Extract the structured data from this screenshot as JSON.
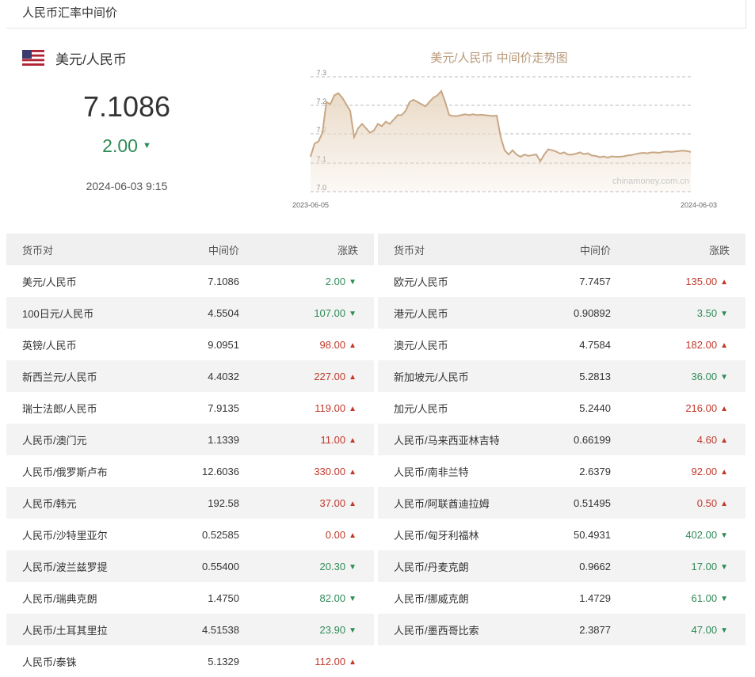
{
  "header": {
    "title": "人民币汇率中间价"
  },
  "summary": {
    "pair": "美元/人民币",
    "rate": "7.1086",
    "change": "2.00",
    "direction": "down",
    "timestamp": "2024-06-03 9:15"
  },
  "chart_data": {
    "type": "area",
    "title": "美元/人民币 中间价走势图",
    "watermark": "chinamoney.com.cn",
    "x_start": "2023-06-05",
    "x_end": "2024-06-03",
    "ytick_labels": [
      "7.3",
      "7.2",
      "7.2",
      "7.1",
      "7.0"
    ],
    "line_color": "#c8a785",
    "fill_color": "#e9d8c4",
    "values": [
      7.095,
      7.125,
      7.13,
      7.15,
      7.22,
      7.215,
      7.235,
      7.24,
      7.23,
      7.215,
      7.2,
      7.14,
      7.16,
      7.17,
      7.16,
      7.15,
      7.155,
      7.17,
      7.165,
      7.175,
      7.17,
      7.18,
      7.19,
      7.19,
      7.2,
      7.22,
      7.225,
      7.22,
      7.215,
      7.21,
      7.22,
      7.23,
      7.235,
      7.245,
      7.22,
      7.19,
      7.188,
      7.188,
      7.19,
      7.192,
      7.19,
      7.192,
      7.19,
      7.191,
      7.19,
      7.189,
      7.188,
      7.189,
      7.14,
      7.11,
      7.1,
      7.11,
      7.1,
      7.095,
      7.1,
      7.097,
      7.099,
      7.1,
      7.085,
      7.1,
      7.112,
      7.11,
      7.107,
      7.102,
      7.105,
      7.1,
      7.1,
      7.102,
      7.105,
      7.101,
      7.103,
      7.098,
      7.097,
      7.094,
      7.096,
      7.093,
      7.096,
      7.095,
      7.095,
      7.096,
      7.098,
      7.099,
      7.101,
      7.103,
      7.104,
      7.103,
      7.105,
      7.105,
      7.104,
      7.106,
      7.107,
      7.106,
      7.107,
      7.108,
      7.109,
      7.108,
      7.106
    ],
    "grid": true,
    "grid_style": "dashed"
  },
  "table": {
    "headers": [
      "货币对",
      "中间价",
      "涨跌"
    ],
    "left": [
      {
        "pair": "美元/人民币",
        "rate": "7.1086",
        "change": "2.00",
        "dir": "down"
      },
      {
        "pair": "100日元/人民币",
        "rate": "4.5504",
        "change": "107.00",
        "dir": "down"
      },
      {
        "pair": "英镑/人民币",
        "rate": "9.0951",
        "change": "98.00",
        "dir": "up"
      },
      {
        "pair": "新西兰元/人民币",
        "rate": "4.4032",
        "change": "227.00",
        "dir": "up"
      },
      {
        "pair": "瑞士法郎/人民币",
        "rate": "7.9135",
        "change": "119.00",
        "dir": "up"
      },
      {
        "pair": "人民币/澳门元",
        "rate": "1.1339",
        "change": "11.00",
        "dir": "up"
      },
      {
        "pair": "人民币/俄罗斯卢布",
        "rate": "12.6036",
        "change": "330.00",
        "dir": "up"
      },
      {
        "pair": "人民币/韩元",
        "rate": "192.58",
        "change": "37.00",
        "dir": "up"
      },
      {
        "pair": "人民币/沙特里亚尔",
        "rate": "0.52585",
        "change": "0.00",
        "dir": "up"
      },
      {
        "pair": "人民币/波兰兹罗提",
        "rate": "0.55400",
        "change": "20.30",
        "dir": "down"
      },
      {
        "pair": "人民币/瑞典克朗",
        "rate": "1.4750",
        "change": "82.00",
        "dir": "down"
      },
      {
        "pair": "人民币/土耳其里拉",
        "rate": "4.51538",
        "change": "23.90",
        "dir": "down"
      },
      {
        "pair": "人民币/泰铢",
        "rate": "5.1329",
        "change": "112.00",
        "dir": "up"
      }
    ],
    "right": [
      {
        "pair": "欧元/人民币",
        "rate": "7.7457",
        "change": "135.00",
        "dir": "up"
      },
      {
        "pair": "港元/人民币",
        "rate": "0.90892",
        "change": "3.50",
        "dir": "down"
      },
      {
        "pair": "澳元/人民币",
        "rate": "4.7584",
        "change": "182.00",
        "dir": "up"
      },
      {
        "pair": "新加坡元/人民币",
        "rate": "5.2813",
        "change": "36.00",
        "dir": "down"
      },
      {
        "pair": "加元/人民币",
        "rate": "5.2440",
        "change": "216.00",
        "dir": "up"
      },
      {
        "pair": "人民币/马来西亚林吉特",
        "rate": "0.66199",
        "change": "4.60",
        "dir": "up"
      },
      {
        "pair": "人民币/南非兰特",
        "rate": "2.6379",
        "change": "92.00",
        "dir": "up"
      },
      {
        "pair": "人民币/阿联酋迪拉姆",
        "rate": "0.51495",
        "change": "0.50",
        "dir": "up"
      },
      {
        "pair": "人民币/匈牙利福林",
        "rate": "50.4931",
        "change": "402.00",
        "dir": "down"
      },
      {
        "pair": "人民币/丹麦克朗",
        "rate": "0.9662",
        "change": "17.00",
        "dir": "down"
      },
      {
        "pair": "人民币/挪威克朗",
        "rate": "1.4729",
        "change": "61.00",
        "dir": "down"
      },
      {
        "pair": "人民币/墨西哥比索",
        "rate": "2.3877",
        "change": "47.00",
        "dir": "down"
      }
    ]
  }
}
